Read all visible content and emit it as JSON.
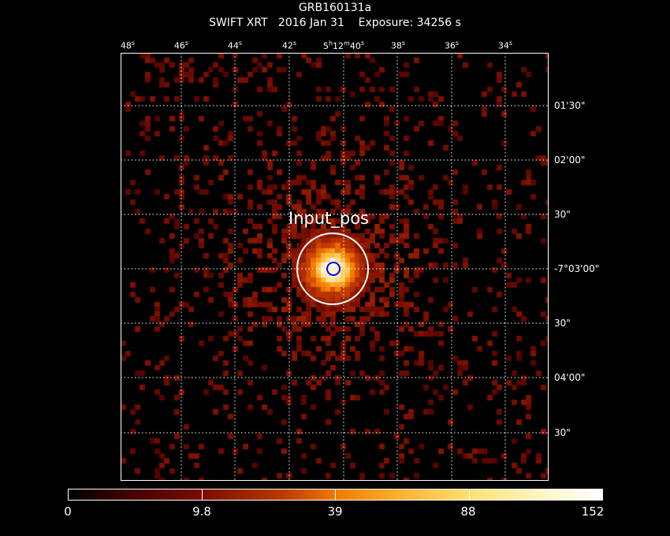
{
  "title": "GRB160131a",
  "subtitle": "SWIFT XRT   2016 Jan 31    Exposure: 34256 s",
  "ra_ticks": [
    {
      "label": "48",
      "unit": "s"
    },
    {
      "label": "46",
      "unit": "s"
    },
    {
      "label": "44",
      "unit": "s"
    },
    {
      "label": "42",
      "unit": "s"
    },
    {
      "label": "5h12m40",
      "unit": "s"
    },
    {
      "label": "38",
      "unit": "s"
    },
    {
      "label": "36",
      "unit": "s"
    },
    {
      "label": "34",
      "unit": "s"
    }
  ],
  "dec_ticks": [
    "01'30\"",
    "02'00\"",
    "30\"",
    "-7°03'00\"",
    "30\"",
    "04'00\"",
    "30\""
  ],
  "source_label": "Input_pos",
  "colorbar_labels": [
    "0",
    "9.8",
    "39",
    "88",
    "152"
  ],
  "colors": {
    "background": "#000000",
    "grid": "#ffffff",
    "source_circle": "#ffffff",
    "position_marker": "#0000ff"
  }
}
